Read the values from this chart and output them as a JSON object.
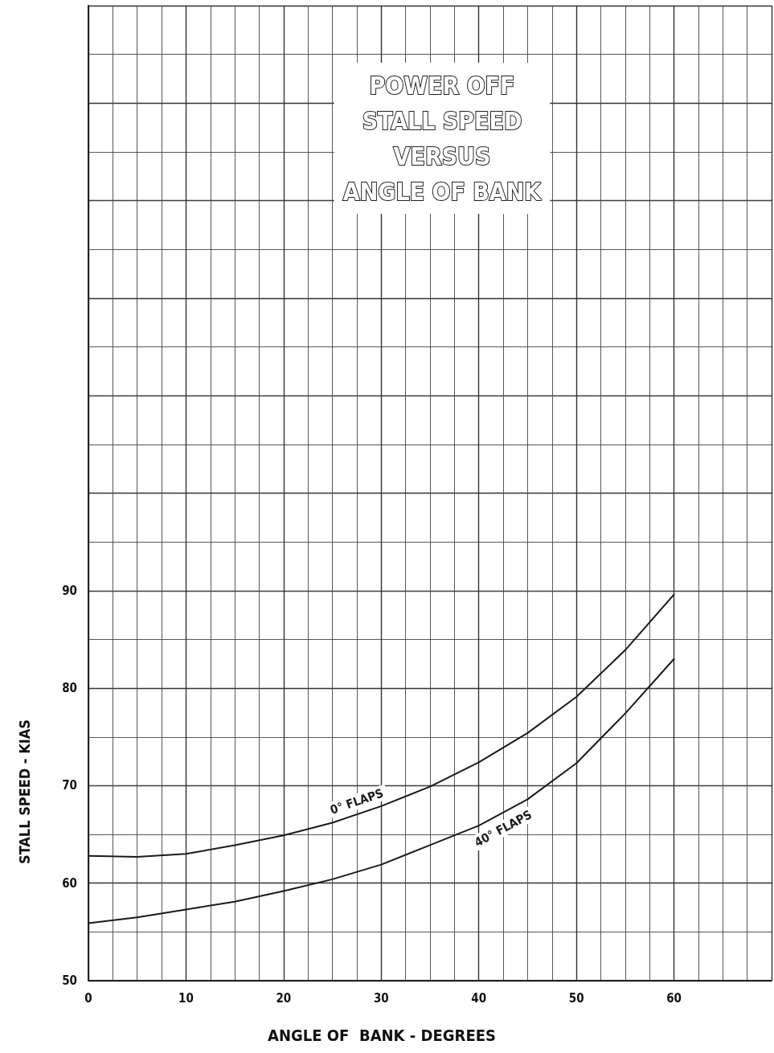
{
  "chart_data": {
    "type": "line",
    "title": "POWER OFF\nSTALL SPEED\nVERSUS\nANGLE OF BANK",
    "xlabel": "ANGLE OF  BANK - DEGREES",
    "ylabel": "STALL SPEED - KIAS",
    "x": [
      0,
      5,
      10,
      15,
      20,
      25,
      30,
      35,
      40,
      45,
      50,
      55,
      60
    ],
    "series": [
      {
        "name": "0° FLAPS",
        "color": "#1a1a1a",
        "values": [
          62.8,
          62.7,
          63.0,
          63.9,
          64.9,
          66.2,
          67.9,
          69.9,
          72.4,
          75.4,
          79.1,
          83.9,
          89.6
        ]
      },
      {
        "name": "40° FLAPS",
        "color": "#1a1a1a",
        "values": [
          55.9,
          56.5,
          57.3,
          58.1,
          59.2,
          60.4,
          61.9,
          63.9,
          65.9,
          68.6,
          72.3,
          77.4,
          83.0
        ]
      }
    ],
    "xlim": [
      0,
      70
    ],
    "xticks": [
      0,
      10,
      20,
      30,
      40,
      50,
      60,
      {
        "value": 70,
        "label": null
      }
    ],
    "ylim": [
      50,
      150
    ],
    "yticks": [
      50,
      60,
      70,
      80,
      90,
      {
        "value": 100,
        "label": null
      },
      {
        "value": 110,
        "label": null
      },
      {
        "value": 120,
        "label": null
      },
      {
        "value": 130,
        "label": null
      },
      {
        "value": 140,
        "label": null
      },
      {
        "value": 150,
        "label": null
      }
    ],
    "grid": true,
    "marker": "none",
    "line_style": "solid"
  }
}
